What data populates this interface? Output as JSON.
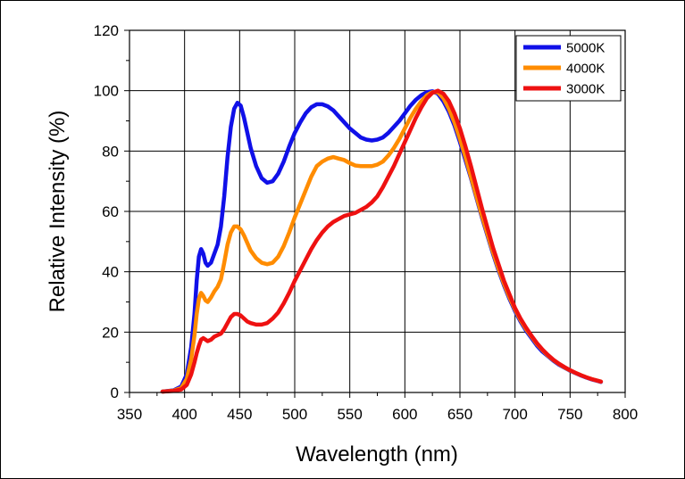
{
  "chart_data": {
    "type": "line",
    "title": "",
    "xlabel": "Wavelength (nm)",
    "ylabel": "Relative Intensity (%)",
    "xlim": [
      350,
      800
    ],
    "ylim": [
      0,
      120
    ],
    "x_ticks": [
      "350",
      "400",
      "450",
      "500",
      "550",
      "600",
      "650",
      "700",
      "750",
      "800"
    ],
    "y_ticks": [
      "0",
      "20",
      "40",
      "60",
      "80",
      "100",
      "120"
    ],
    "grid": true,
    "legend_position": "top-right",
    "series": [
      {
        "name": "5000K",
        "color": "#1010e8",
        "points": [
          [
            380,
            0.3
          ],
          [
            390,
            0.7
          ],
          [
            397,
            2
          ],
          [
            402,
            6
          ],
          [
            406,
            15
          ],
          [
            409,
            26
          ],
          [
            411,
            37
          ],
          [
            413,
            45
          ],
          [
            415,
            47.5
          ],
          [
            417,
            46
          ],
          [
            419,
            43
          ],
          [
            421,
            42
          ],
          [
            424,
            43
          ],
          [
            427,
            46
          ],
          [
            430,
            49
          ],
          [
            433,
            55
          ],
          [
            436,
            65
          ],
          [
            439,
            78
          ],
          [
            442,
            88
          ],
          [
            445,
            94
          ],
          [
            448,
            96
          ],
          [
            451,
            95
          ],
          [
            454,
            91
          ],
          [
            457,
            86
          ],
          [
            460,
            81
          ],
          [
            465,
            75
          ],
          [
            470,
            71
          ],
          [
            475,
            69.5
          ],
          [
            480,
            70
          ],
          [
            485,
            72.5
          ],
          [
            490,
            76.5
          ],
          [
            495,
            81.5
          ],
          [
            500,
            86
          ],
          [
            505,
            89.5
          ],
          [
            510,
            92.5
          ],
          [
            515,
            94.5
          ],
          [
            520,
            95.5
          ],
          [
            525,
            95.5
          ],
          [
            530,
            94.8
          ],
          [
            535,
            93.5
          ],
          [
            540,
            91.5
          ],
          [
            545,
            89.5
          ],
          [
            550,
            87.5
          ],
          [
            555,
            86
          ],
          [
            560,
            84.5
          ],
          [
            565,
            83.8
          ],
          [
            570,
            83.5
          ],
          [
            575,
            83.8
          ],
          [
            580,
            84.5
          ],
          [
            585,
            86
          ],
          [
            590,
            88
          ],
          [
            595,
            90
          ],
          [
            600,
            92.5
          ],
          [
            605,
            95
          ],
          [
            610,
            97
          ],
          [
            615,
            98.5
          ],
          [
            620,
            99.5
          ],
          [
            625,
            99.8
          ],
          [
            630,
            99
          ],
          [
            635,
            96.5
          ],
          [
            640,
            93
          ],
          [
            645,
            88.5
          ],
          [
            650,
            83
          ],
          [
            655,
            77
          ],
          [
            660,
            71
          ],
          [
            665,
            64.5
          ],
          [
            670,
            58
          ],
          [
            675,
            52
          ],
          [
            680,
            46
          ],
          [
            685,
            40.5
          ],
          [
            690,
            35.5
          ],
          [
            695,
            31
          ],
          [
            700,
            27
          ],
          [
            705,
            23.5
          ],
          [
            710,
            20.5
          ],
          [
            715,
            18
          ],
          [
            720,
            15.5
          ],
          [
            725,
            13.5
          ],
          [
            730,
            12
          ],
          [
            735,
            10.5
          ],
          [
            740,
            9.2
          ],
          [
            745,
            8.2
          ],
          [
            750,
            7.2
          ],
          [
            755,
            6.4
          ],
          [
            760,
            5.6
          ],
          [
            765,
            4.9
          ],
          [
            770,
            4.3
          ],
          [
            775,
            3.8
          ],
          [
            778,
            3.5
          ]
        ]
      },
      {
        "name": "4000K",
        "color": "#ff8c00",
        "points": [
          [
            380,
            0.3
          ],
          [
            390,
            0.6
          ],
          [
            397,
            1.5
          ],
          [
            402,
            4.5
          ],
          [
            406,
            11
          ],
          [
            409,
            19
          ],
          [
            411,
            26
          ],
          [
            413,
            31
          ],
          [
            415,
            33
          ],
          [
            417,
            32
          ],
          [
            419,
            30.5
          ],
          [
            421,
            30
          ],
          [
            424,
            31.5
          ],
          [
            427,
            33.5
          ],
          [
            430,
            35
          ],
          [
            433,
            37.5
          ],
          [
            436,
            43
          ],
          [
            439,
            49
          ],
          [
            442,
            53
          ],
          [
            445,
            55
          ],
          [
            448,
            55
          ],
          [
            451,
            54
          ],
          [
            454,
            52
          ],
          [
            457,
            49.5
          ],
          [
            460,
            47
          ],
          [
            465,
            44.5
          ],
          [
            470,
            43
          ],
          [
            475,
            42.5
          ],
          [
            480,
            43
          ],
          [
            485,
            45
          ],
          [
            490,
            48.5
          ],
          [
            495,
            53
          ],
          [
            500,
            58
          ],
          [
            505,
            62.5
          ],
          [
            510,
            67
          ],
          [
            515,
            71.5
          ],
          [
            520,
            75
          ],
          [
            525,
            76.5
          ],
          [
            530,
            77.5
          ],
          [
            535,
            78
          ],
          [
            540,
            77.5
          ],
          [
            545,
            77
          ],
          [
            550,
            76
          ],
          [
            555,
            75.2
          ],
          [
            560,
            75
          ],
          [
            565,
            75
          ],
          [
            570,
            75
          ],
          [
            575,
            75.5
          ],
          [
            580,
            76.5
          ],
          [
            585,
            78.5
          ],
          [
            590,
            81
          ],
          [
            595,
            84
          ],
          [
            600,
            87.5
          ],
          [
            605,
            91
          ],
          [
            610,
            94
          ],
          [
            615,
            96.5
          ],
          [
            620,
            98.5
          ],
          [
            625,
            99.5
          ],
          [
            630,
            99.5
          ],
          [
            635,
            97.5
          ],
          [
            640,
            94
          ],
          [
            645,
            89.5
          ],
          [
            650,
            84
          ],
          [
            655,
            78
          ],
          [
            660,
            71.5
          ],
          [
            665,
            65
          ],
          [
            670,
            58.5
          ],
          [
            675,
            52.5
          ],
          [
            680,
            46.5
          ],
          [
            685,
            41
          ],
          [
            690,
            36
          ],
          [
            695,
            31.5
          ],
          [
            700,
            27.5
          ],
          [
            705,
            24
          ],
          [
            710,
            21
          ],
          [
            715,
            18.5
          ],
          [
            720,
            16
          ],
          [
            725,
            14
          ],
          [
            730,
            12.2
          ],
          [
            735,
            10.7
          ],
          [
            740,
            9.4
          ],
          [
            745,
            8.3
          ],
          [
            750,
            7.3
          ],
          [
            755,
            6.5
          ],
          [
            760,
            5.7
          ],
          [
            765,
            5
          ],
          [
            770,
            4.4
          ],
          [
            775,
            3.9
          ],
          [
            778,
            3.6
          ]
        ]
      },
      {
        "name": "3000K",
        "color": "#ee1111",
        "points": [
          [
            380,
            0.3
          ],
          [
            390,
            0.5
          ],
          [
            397,
            1
          ],
          [
            402,
            2.5
          ],
          [
            406,
            6
          ],
          [
            409,
            10
          ],
          [
            411,
            13
          ],
          [
            413,
            15.5
          ],
          [
            415,
            17.5
          ],
          [
            417,
            18
          ],
          [
            419,
            17.5
          ],
          [
            421,
            17
          ],
          [
            424,
            17.5
          ],
          [
            427,
            18.5
          ],
          [
            430,
            19
          ],
          [
            433,
            19.5
          ],
          [
            436,
            21
          ],
          [
            439,
            23
          ],
          [
            442,
            25
          ],
          [
            445,
            26
          ],
          [
            448,
            26
          ],
          [
            451,
            25.5
          ],
          [
            454,
            24.5
          ],
          [
            457,
            23.5
          ],
          [
            460,
            23
          ],
          [
            465,
            22.5
          ],
          [
            470,
            22.5
          ],
          [
            475,
            23
          ],
          [
            480,
            24.5
          ],
          [
            485,
            26.5
          ],
          [
            490,
            29.5
          ],
          [
            495,
            33
          ],
          [
            500,
            37
          ],
          [
            505,
            40.5
          ],
          [
            510,
            44
          ],
          [
            515,
            47.5
          ],
          [
            520,
            50.5
          ],
          [
            525,
            53
          ],
          [
            530,
            55
          ],
          [
            535,
            56.5
          ],
          [
            540,
            57.5
          ],
          [
            545,
            58.5
          ],
          [
            550,
            59
          ],
          [
            555,
            59.5
          ],
          [
            560,
            60.5
          ],
          [
            565,
            61.5
          ],
          [
            570,
            63
          ],
          [
            575,
            65
          ],
          [
            580,
            68
          ],
          [
            585,
            71.5
          ],
          [
            590,
            75
          ],
          [
            595,
            79
          ],
          [
            600,
            83
          ],
          [
            605,
            87
          ],
          [
            610,
            91
          ],
          [
            615,
            94.5
          ],
          [
            620,
            97.5
          ],
          [
            625,
            99.3
          ],
          [
            630,
            100
          ],
          [
            635,
            99
          ],
          [
            640,
            96.5
          ],
          [
            645,
            92.5
          ],
          [
            650,
            87.5
          ],
          [
            655,
            81.5
          ],
          [
            660,
            75
          ],
          [
            665,
            68
          ],
          [
            670,
            61
          ],
          [
            675,
            54.5
          ],
          [
            680,
            48
          ],
          [
            685,
            42.5
          ],
          [
            690,
            37
          ],
          [
            695,
            32.5
          ],
          [
            700,
            28
          ],
          [
            705,
            24.5
          ],
          [
            710,
            21.5
          ],
          [
            715,
            18.8
          ],
          [
            720,
            16.3
          ],
          [
            725,
            14.2
          ],
          [
            730,
            12.4
          ],
          [
            735,
            10.8
          ],
          [
            740,
            9.5
          ],
          [
            745,
            8.4
          ],
          [
            750,
            7.4
          ],
          [
            755,
            6.5
          ],
          [
            760,
            5.7
          ],
          [
            765,
            5
          ],
          [
            770,
            4.4
          ],
          [
            775,
            3.9
          ],
          [
            778,
            3.6
          ]
        ]
      }
    ]
  }
}
